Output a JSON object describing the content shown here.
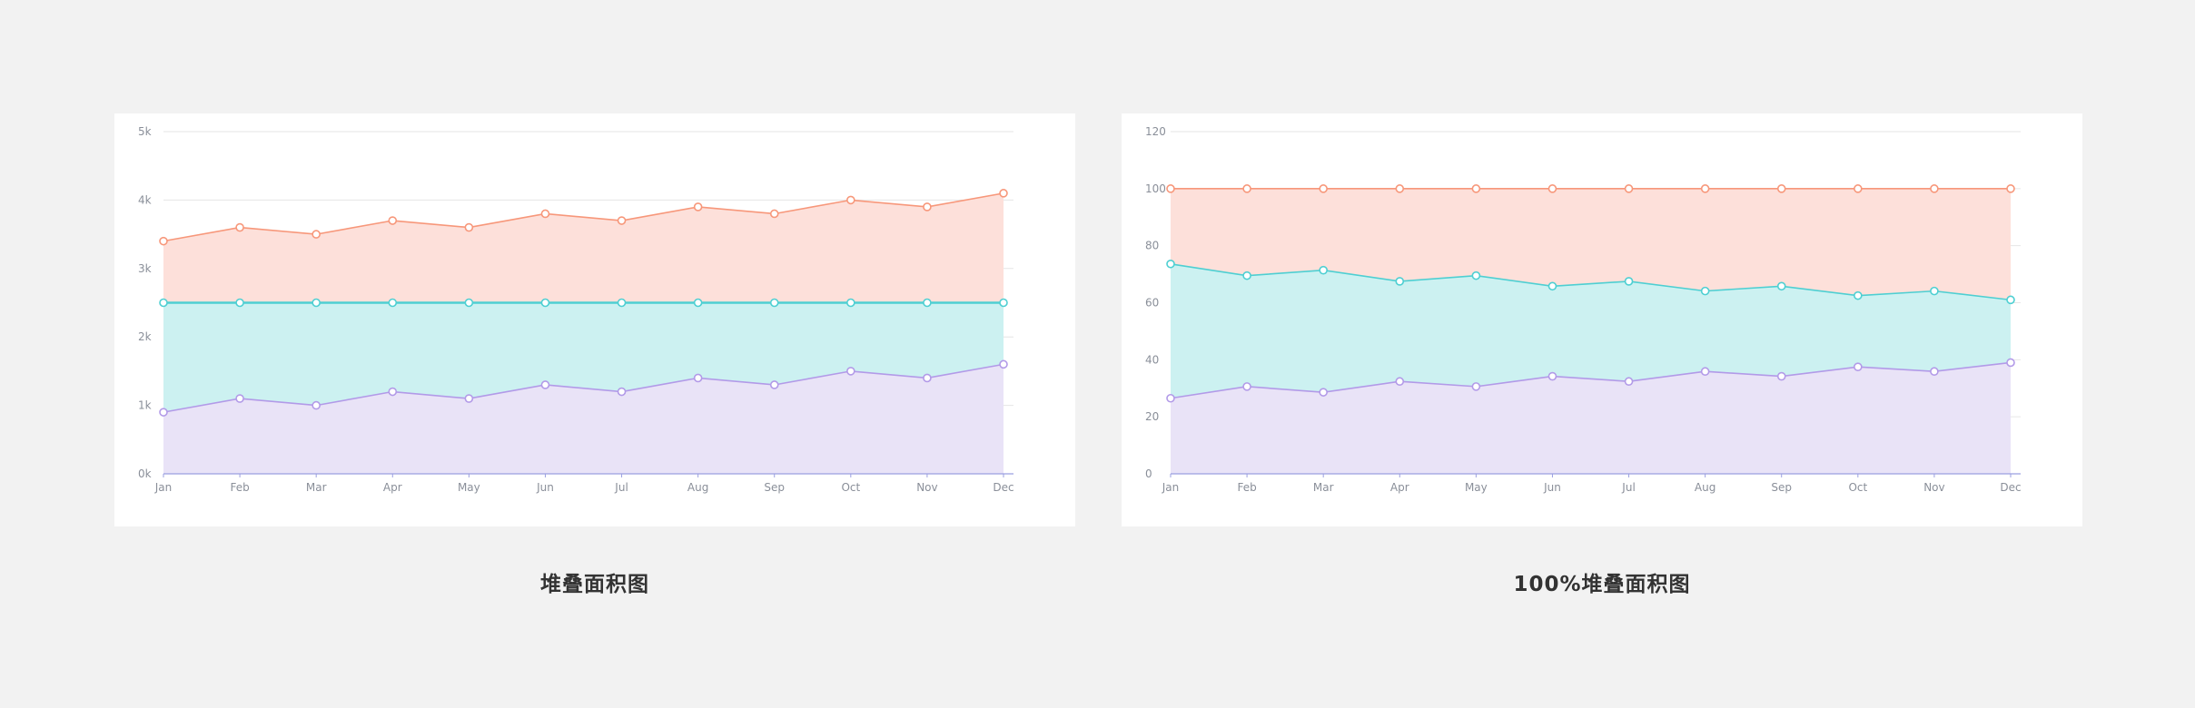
{
  "captions": {
    "stacked": "堆叠面积图",
    "percent": "100%堆叠面积图"
  },
  "colors": {
    "orange_line": "#f7977a",
    "orange_fill": "#fde0da",
    "cyan_line": "#4ecfd2",
    "cyan_fill": "#ccf1f1",
    "purple_line": "#b29ae8",
    "purple_fill": "#e9e3f7",
    "axis": "#9a9fe0",
    "grid": "#e6e6e6",
    "tick_text": "#8a8f99"
  },
  "chart_data": [
    {
      "type": "area",
      "stacked": true,
      "categories": [
        "Jan",
        "Feb",
        "Mar",
        "Apr",
        "May",
        "Jun",
        "Jul",
        "Aug",
        "Sep",
        "Oct",
        "Nov",
        "Dec"
      ],
      "y_tick_labels": [
        "0k",
        "1k",
        "2k",
        "3k",
        "4k",
        "5k"
      ],
      "ylim": [
        0,
        5000
      ],
      "grid": true,
      "series": [
        {
          "values": [
            900,
            1100,
            1000,
            1200,
            1100,
            1300,
            1200,
            1400,
            1300,
            1500,
            1400,
            1600
          ],
          "color": "purple"
        },
        {
          "values": [
            1600,
            1400,
            1500,
            1300,
            1400,
            1200,
            1300,
            1100,
            1200,
            1000,
            1100,
            900
          ],
          "color": "cyan"
        },
        {
          "values": [
            900,
            1100,
            1000,
            1200,
            1100,
            1300,
            1200,
            1400,
            1300,
            1500,
            1400,
            1600
          ],
          "color": "orange"
        }
      ]
    },
    {
      "type": "area",
      "stacked": true,
      "percent": true,
      "categories": [
        "Jan",
        "Feb",
        "Mar",
        "Apr",
        "May",
        "Jun",
        "Jul",
        "Aug",
        "Sep",
        "Oct",
        "Nov",
        "Dec"
      ],
      "y_tick_labels": [
        "0",
        "20",
        "40",
        "60",
        "80",
        "100",
        "120"
      ],
      "ylim": [
        0,
        120
      ],
      "grid": true,
      "series": [
        {
          "values": [
            26.5,
            30.6,
            28.6,
            32.4,
            30.6,
            34.2,
            32.4,
            35.9,
            34.2,
            37.5,
            35.9,
            39.0
          ],
          "color": "purple"
        },
        {
          "values": [
            47.1,
            38.9,
            42.8,
            35.1,
            38.9,
            31.6,
            35.1,
            28.2,
            31.6,
            25.0,
            28.2,
            22.0
          ],
          "color": "cyan"
        },
        {
          "values": [
            26.4,
            30.5,
            28.6,
            32.5,
            30.5,
            34.2,
            32.5,
            35.9,
            34.2,
            37.5,
            35.9,
            39.0
          ],
          "color": "orange"
        }
      ]
    }
  ]
}
